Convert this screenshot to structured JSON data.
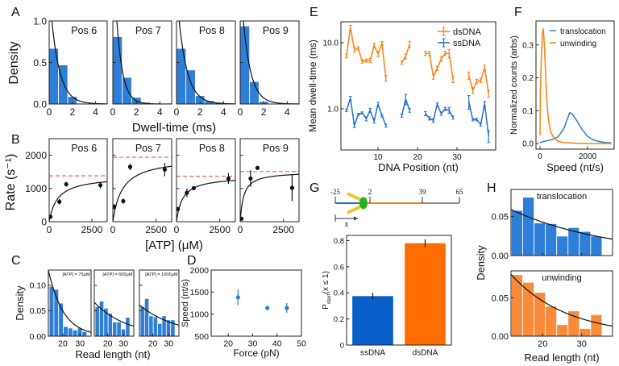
{
  "panels": {
    "A": {
      "letter": "A",
      "ylabel": "Density",
      "xlabel": "Dwell-time (ms)"
    },
    "B": {
      "letter": "B",
      "ylabel": "Rate (s⁻¹)",
      "xlabel": "[ATP] (μM)"
    },
    "C": {
      "letter": "C",
      "ylabel": "Density",
      "xlabel": "Read length (nt)"
    },
    "D": {
      "letter": "D"
    },
    "E": {
      "letter": "E"
    },
    "F": {
      "letter": "F"
    },
    "G": {
      "letter": "G",
      "schematic": {
        "labels": [
          "-25",
          "2",
          "39",
          "65"
        ],
        "arrow_label": "x",
        "colors": {
          "ssDNA": "#1f6fd1",
          "dsDNA": "#ff7f0e",
          "tail": "#8c8c8c",
          "helicase": "#22b022",
          "arms": "#e8c829"
        }
      }
    },
    "H": {
      "letter": "H",
      "ylabel": "Density",
      "xlabel": "Read length (nt)"
    }
  },
  "chart_data": [
    {
      "panel": "A",
      "type": "bar",
      "title": "Pos 6",
      "bin_edges": [
        0,
        0.8,
        1.6,
        2.4,
        3.2,
        4.0,
        4.8
      ],
      "values": [
        0.67,
        0.47,
        0.09,
        0.01,
        0.005,
        0
      ],
      "fit": {
        "model": "exponential",
        "a": 1.38,
        "tau": 0.725
      },
      "xlim": [
        0,
        5
      ],
      "ylim": [
        0,
        1
      ],
      "xticks": [
        0,
        2,
        4
      ],
      "xtick_labels": [
        "0",
        "2",
        "4"
      ],
      "yticks": [
        0,
        0.5,
        1.0
      ],
      "ytick_labels": [
        "0.0",
        "0.5",
        "1.0"
      ],
      "color": "#2f7ed8"
    },
    {
      "panel": "A",
      "type": "bar",
      "title": "Pos 7",
      "bin_edges": [
        0,
        0.8,
        1.6,
        2.4,
        3.2,
        4.0,
        4.8
      ],
      "values": [
        0.81,
        0.32,
        0.08,
        0.02,
        0.005,
        0
      ],
      "fit": {
        "model": "exponential",
        "a": 1.94,
        "tau": 0.515
      },
      "xlim": [
        0,
        5
      ],
      "ylim": [
        0,
        1
      ],
      "xticks": [
        0,
        2,
        4
      ],
      "xtick_labels": [
        "0",
        "2",
        "4"
      ],
      "yticks": [
        0,
        0.5,
        1.0
      ],
      "color": "#2f7ed8"
    },
    {
      "panel": "A",
      "type": "bar",
      "title": "Pos 8",
      "bin_edges": [
        0,
        0.8,
        1.6,
        2.4,
        3.2,
        4.0,
        4.8
      ],
      "values": [
        0.67,
        0.41,
        0.1,
        0.04,
        0.02,
        0.005
      ],
      "fit": {
        "model": "exponential",
        "a": 1.37,
        "tau": 0.73
      },
      "xlim": [
        0,
        5
      ],
      "ylim": [
        0,
        1
      ],
      "xticks": [
        0,
        2,
        4
      ],
      "xtick_labels": [
        "0",
        "2",
        "4"
      ],
      "yticks": [
        0,
        0.5,
        1.0
      ],
      "color": "#2f7ed8"
    },
    {
      "panel": "A",
      "type": "bar",
      "title": "Pos 9",
      "bin_edges": [
        0,
        0.8,
        1.6,
        2.4,
        3.2,
        4.0,
        4.8
      ],
      "values": [
        0.94,
        0.27,
        0.03,
        0.005,
        0,
        0
      ],
      "fit": {
        "model": "exponential",
        "a": 1.51,
        "tau": 0.66
      },
      "xlim": [
        0,
        5
      ],
      "ylim": [
        0,
        1
      ],
      "xticks": [
        0,
        2,
        4
      ],
      "xtick_labels": [
        "0",
        "2",
        "4"
      ],
      "yticks": [
        0,
        0.5,
        1.0
      ],
      "color": "#2f7ed8"
    },
    {
      "panel": "B",
      "type": "scatter",
      "title": "Pos 6",
      "points": {
        "x": [
          75,
          600,
          1000,
          3000
        ],
        "y": [
          150,
          600,
          1130,
          1100
        ],
        "err": [
          60,
          80,
          70,
          100
        ]
      },
      "fit": {
        "model": "michaelis-menten",
        "vmax": 1380,
        "km": 500
      },
      "reference": 1380,
      "xlim": [
        0,
        3400
      ],
      "ylim": [
        0,
        2500
      ],
      "xticks": [
        0,
        2500
      ],
      "xtick_labels": [
        "0",
        "2500"
      ],
      "yticks": [
        0,
        1000,
        2000
      ],
      "ytick_labels": [
        "0",
        "1000",
        "2000"
      ],
      "color": "#111111",
      "reference_color": "#ff5a4a"
    },
    {
      "panel": "B",
      "type": "scatter",
      "title": "Pos 7",
      "points": {
        "x": [
          75,
          600,
          1000,
          3000
        ],
        "y": [
          450,
          620,
          1650,
          1570
        ],
        "err": [
          80,
          80,
          100,
          200
        ]
      },
      "fit": {
        "model": "michaelis-menten",
        "vmax": 1940,
        "km": 550
      },
      "reference": 1940,
      "xlim": [
        0,
        3400
      ],
      "ylim": [
        0,
        2500
      ],
      "xticks": [
        0,
        2500
      ],
      "xtick_labels": [
        "0",
        "2500"
      ],
      "yticks": [
        0,
        1000,
        2000
      ],
      "color": "#111111",
      "reference_color": "#ff5a4a"
    },
    {
      "panel": "B",
      "type": "scatter",
      "title": "Pos 8",
      "points": {
        "x": [
          75,
          600,
          1000,
          3000
        ],
        "y": [
          380,
          870,
          1010,
          1300
        ],
        "err": [
          60,
          130,
          50,
          160
        ]
      },
      "fit": {
        "model": "michaelis-menten",
        "vmax": 1370,
        "km": 350
      },
      "reference": 1370,
      "xlim": [
        0,
        3400
      ],
      "ylim": [
        0,
        2500
      ],
      "xticks": [
        0,
        2500
      ],
      "xtick_labels": [
        "0",
        "2500"
      ],
      "yticks": [
        0,
        1000,
        2000
      ],
      "color": "#111111",
      "reference_color": "#ff5a4a"
    },
    {
      "panel": "B",
      "type": "scatter",
      "title": "Pos 9",
      "points": {
        "x": [
          75,
          600,
          1000,
          3000
        ],
        "y": [
          90,
          1300,
          1620,
          1020
        ],
        "err": [
          40,
          250,
          60,
          400
        ]
      },
      "fit": {
        "model": "michaelis-menten",
        "vmax": 1510,
        "km": 200
      },
      "reference": 1510,
      "xlim": [
        0,
        3400
      ],
      "ylim": [
        0,
        2500
      ],
      "xticks": [
        0,
        2500
      ],
      "xtick_labels": [
        "0",
        "2500"
      ],
      "yticks": [
        0,
        1000,
        2000
      ],
      "color": "#111111",
      "reference_color": "#ff5a4a"
    },
    {
      "panel": "C",
      "type": "bar",
      "title": "[ATP] = 75μM",
      "bin_edges": [
        12,
        14.75,
        17.5,
        20.25,
        23,
        25.75,
        28.5,
        31.25,
        34
      ],
      "values": [
        0.098,
        0.092,
        0.065,
        0.019,
        0.016,
        0.012,
        0.016,
        0.009
      ],
      "fit": {
        "model": "exponential",
        "a": 0.482,
        "tau": 8.78
      },
      "xlim": [
        11.5,
        36.5
      ],
      "ylim": [
        0,
        0.13
      ],
      "xticks": [
        20,
        30
      ],
      "xtick_labels": [
        "20",
        "30"
      ],
      "yticks": [
        0,
        0.05,
        0.1
      ],
      "ytick_labels": [
        "0.00",
        "0.05",
        "0.10"
      ],
      "color": "#2f7ed8"
    },
    {
      "panel": "C",
      "type": "bar",
      "title": "[ATP] = 600μM",
      "bin_edges": [
        12,
        14.75,
        17.5,
        20.25,
        23,
        25.75,
        28.5,
        31.25,
        34
      ],
      "values": [
        0.058,
        0.069,
        0.055,
        0.045,
        0.028,
        0.028,
        0.014,
        0.037
      ],
      "fit": {
        "model": "exponential",
        "a": 0.117,
        "tau": 20.4
      },
      "xlim": [
        11.5,
        36.5
      ],
      "ylim": [
        0,
        0.13
      ],
      "xticks": [
        20,
        30
      ],
      "xtick_labels": [
        "20",
        "30"
      ],
      "yticks": [
        0,
        0.05,
        0.1
      ],
      "color": "#2f7ed8"
    },
    {
      "panel": "C",
      "type": "bar",
      "title": "[ATP] = 1000μM",
      "bin_edges": [
        12,
        14.75,
        17.5,
        20.25,
        23,
        25.75,
        28.5,
        31.25,
        34
      ],
      "values": [
        0.058,
        0.074,
        0.04,
        0.038,
        0.025,
        0.04,
        0.032,
        0.032
      ],
      "fit": {
        "model": "exponential",
        "a": 0.099,
        "tau": 23.9
      },
      "xlim": [
        11.5,
        36.5
      ],
      "ylim": [
        0,
        0.13
      ],
      "xticks": [
        20,
        30
      ],
      "xtick_labels": [
        "20",
        "30"
      ],
      "yticks": [
        0,
        0.05,
        0.1
      ],
      "color": "#2f7ed8"
    },
    {
      "panel": "D",
      "type": "scatter",
      "xlabel": "Force (pN)",
      "ylabel": "Speed (nt/s)",
      "points": {
        "x": [
          24,
          36,
          44
        ],
        "y": [
          1380,
          1140,
          1140
        ],
        "err": [
          180,
          40,
          110
        ]
      },
      "xlim": [
        13,
        50
      ],
      "ylim": [
        500,
        2000
      ],
      "xticks": [
        20,
        30,
        40,
        50
      ],
      "xtick_labels": [
        "20",
        "30",
        "40",
        "50"
      ],
      "yticks": [
        500,
        1000,
        1500,
        2000
      ],
      "ytick_labels": [
        "500",
        "1000",
        "1500",
        "2000"
      ],
      "color": "#2a7fc9"
    },
    {
      "panel": "E",
      "type": "line",
      "xlabel": "DNA Position (nt)",
      "ylabel": "Mean dwell-time (ms)",
      "log_y": true,
      "legend": "upper right",
      "xlim": [
        0.6,
        39.8
      ],
      "ylim": [
        0.24,
        20.7
      ],
      "xticks": [
        10,
        20,
        30
      ],
      "xtick_labels": [
        "10",
        "20",
        "30"
      ],
      "yticks": [
        1,
        10
      ],
      "ytick_labels": [
        "1.0",
        "10.0"
      ],
      "series": [
        {
          "name": "dsDNA",
          "color": "#ff7f0e",
          "x": [
            2,
            3,
            4,
            5,
            6,
            7,
            8,
            9,
            10,
            11,
            12,
            16,
            17,
            18,
            22,
            23,
            24,
            25,
            26,
            27,
            28,
            29,
            33,
            34,
            35,
            36,
            37,
            38
          ],
          "y": [
            6.3,
            16.7,
            7.9,
            8.2,
            5.2,
            5.4,
            5.4,
            9.1,
            6.8,
            9.8,
            2.9,
            5.0,
            6.2,
            9.5,
            6.9,
            6.9,
            3.1,
            4.1,
            5.7,
            6.9,
            6.9,
            2.8,
            3.2,
            1.9,
            2.6,
            2.7,
            4.2,
            1.7
          ],
          "err": [
            0.4,
            1.5,
            0.7,
            0.5,
            0.3,
            0.3,
            0.4,
            0.8,
            0.6,
            0.6,
            0.3,
            0.3,
            0.5,
            1.0,
            0.5,
            0.5,
            0.3,
            0.3,
            0.4,
            0.5,
            1.0,
            0.3,
            0.4,
            0.2,
            0.2,
            0.2,
            0.4,
            0.2
          ]
        },
        {
          "name": "ssDNA",
          "color": "#1f6fd1",
          "x": [
            2,
            3,
            4,
            5,
            6,
            7,
            8,
            9,
            10,
            11,
            12,
            16,
            17,
            18,
            22,
            23,
            24,
            25,
            26,
            27,
            28,
            29,
            33,
            34,
            35,
            36,
            37,
            38
          ],
          "y": [
            0.95,
            1.45,
            0.56,
            0.83,
            0.87,
            0.71,
            0.95,
            0.66,
            1.17,
            0.79,
            0.56,
            0.79,
            1.41,
            0.95,
            0.85,
            0.72,
            0.67,
            1.17,
            0.85,
            1.0,
            0.95,
            0.74,
            1.29,
            0.69,
            0.69,
            0.58,
            1.2,
            0.39
          ],
          "err": [
            0.04,
            0.1,
            0.04,
            0.03,
            0.03,
            0.05,
            0.07,
            0.05,
            0.08,
            0.03,
            0.03,
            0.04,
            0.25,
            0.06,
            0.06,
            0.04,
            0.04,
            0.06,
            0.05,
            0.06,
            0.1,
            0.04,
            0.3,
            0.03,
            0.03,
            0.03,
            0.1,
            0.08
          ]
        }
      ]
    },
    {
      "panel": "F",
      "type": "line",
      "xlabel": "Speed (nt/s)",
      "ylabel": "Normalized counts (arbs)",
      "legend": "upper right",
      "xlim": [
        -170,
        3120
      ],
      "ylim": [
        -0.017,
        0.373
      ],
      "xticks": [
        0,
        2000
      ],
      "xtick_labels": [
        "0",
        "2000"
      ],
      "yticks": [
        0,
        0.1,
        0.2,
        0.3
      ],
      "ytick_labels": [
        "0.0",
        "0.1",
        "0.2",
        "0.3"
      ],
      "series": [
        {
          "name": "translocation",
          "color": "#2a7fc9",
          "x": [
            0,
            250,
            500,
            750,
            1000,
            1150,
            1250,
            1350,
            1500,
            1750,
            2000,
            2250,
            2500,
            2750,
            3000
          ],
          "y": [
            0.003,
            0.008,
            0.012,
            0.02,
            0.045,
            0.075,
            0.094,
            0.09,
            0.075,
            0.045,
            0.022,
            0.011,
            0.006,
            0.003,
            0.002
          ]
        },
        {
          "name": "unwinding",
          "color": "#ff7f0e",
          "x": [
            0,
            15,
            30,
            60,
            100,
            130,
            160,
            200,
            250,
            300,
            350,
            450,
            600,
            800,
            1000,
            1500,
            2000,
            3000
          ],
          "y": [
            0.025,
            0.16,
            0.2,
            0.27,
            0.33,
            0.35,
            0.33,
            0.27,
            0.19,
            0.12,
            0.075,
            0.035,
            0.015,
            0.006,
            0.003,
            0.001,
            0.0,
            0.0
          ]
        }
      ]
    },
    {
      "panel": "G",
      "type": "bar",
      "ylabel": {
        "main": "P",
        "sub": "start",
        "rest": "(x ≤ 1)"
      },
      "categories": [
        "ssDNA",
        "dsDNA"
      ],
      "values": [
        0.375,
        0.78
      ],
      "err": [
        0.025,
        0.03
      ],
      "colors": [
        "#0a5fc9",
        "#ff6d00"
      ],
      "xlim": [
        -0.5,
        1.5
      ],
      "ylim": [
        0,
        0.84
      ],
      "xticks": [],
      "yticks": [
        0,
        0.2,
        0.4,
        0.6,
        0.8
      ],
      "ytick_labels": [
        "0",
        "0.2",
        "0.4",
        "0.6",
        "0.8"
      ]
    },
    {
      "panel": "H",
      "type": "bar",
      "title": "translocation",
      "bin_edges": [
        12,
        14.9,
        17.8,
        20.7,
        23.6,
        26.5,
        29.4,
        32.3,
        35.2
      ],
      "values": [
        0.058,
        0.075,
        0.042,
        0.041,
        0.025,
        0.036,
        0.031,
        0.025
      ],
      "fit": {
        "model": "exponential",
        "a": 0.095,
        "tau": 25.2
      },
      "xlim": [
        11.9,
        37.9
      ],
      "ylim": [
        0,
        0.085
      ],
      "xticks": [
        20,
        30
      ],
      "yticks": [
        0,
        0.05
      ],
      "ytick_labels": [
        "0.00",
        "0.05"
      ],
      "color": "#2f7ed8"
    },
    {
      "panel": "H",
      "type": "bar",
      "title": "unwinding",
      "bin_edges": [
        12,
        14.9,
        17.8,
        20.7,
        23.6,
        26.5,
        29.4,
        32.3,
        35.2
      ],
      "values": [
        0.08,
        0.07,
        0.057,
        0.039,
        0.015,
        0.033,
        0.01,
        0.028
      ],
      "fit": {
        "model": "exponential",
        "a": 0.185,
        "tau": 14.3
      },
      "xlim": [
        11.9,
        37.9
      ],
      "ylim": [
        0,
        0.085
      ],
      "xticks": [
        20,
        30
      ],
      "xtick_labels": [
        "20",
        "30"
      ],
      "yticks": [
        0,
        0.05
      ],
      "ytick_labels": [
        "0.00",
        "0.05"
      ],
      "color": "#f98a3a"
    }
  ]
}
